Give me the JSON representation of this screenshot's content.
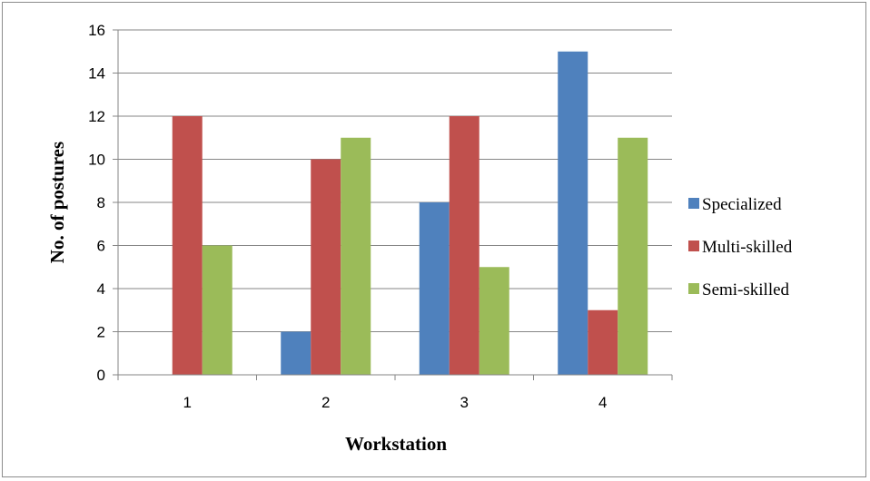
{
  "chart_data": {
    "type": "bar",
    "title": "",
    "xlabel": "Workstation",
    "ylabel": "No. of postures",
    "categories": [
      "1",
      "2",
      "3",
      "4"
    ],
    "ylim": [
      0,
      16
    ],
    "yticks": [
      0,
      2,
      4,
      6,
      8,
      10,
      12,
      14,
      16
    ],
    "grid": true,
    "legend_position": "right",
    "series": [
      {
        "name": "Specialized",
        "color": "#4f81bd",
        "values": [
          0,
          2,
          8,
          15
        ]
      },
      {
        "name": "Multi-skilled",
        "color": "#c0504d",
        "values": [
          12,
          10,
          12,
          3
        ]
      },
      {
        "name": "Semi-skilled",
        "color": "#9bbb59",
        "values": [
          6,
          11,
          5,
          11
        ]
      }
    ]
  }
}
